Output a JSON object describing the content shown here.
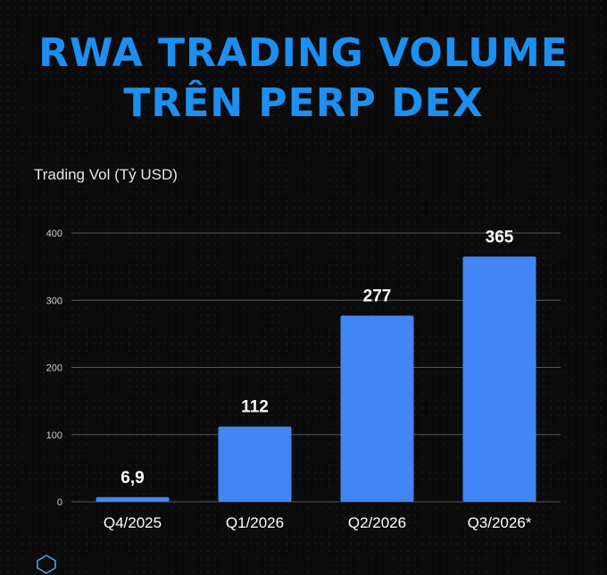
{
  "title_lines": [
    "RWA TRADING VOLUME",
    "TRÊN PERP DEX"
  ],
  "colors": {
    "title": "#1e8ff2",
    "bar": "#4285f4",
    "background": "#0b0b0b",
    "grid": "#5a5a5a",
    "text": "#ffffff"
  },
  "chart_data": {
    "type": "bar",
    "title": "RWA TRADING VOLUME TRÊN PERP DEX",
    "ylabel": "Trading Vol (Tỷ USD)",
    "xlabel": "",
    "categories": [
      "Q4/2025",
      "Q1/2026",
      "Q2/2026",
      "Q3/2026*"
    ],
    "values": [
      6.9,
      112,
      277,
      365
    ],
    "value_labels": [
      "6,9",
      "112",
      "277",
      "365"
    ],
    "ylim": [
      0,
      400
    ],
    "yticks": [
      0,
      100,
      200,
      300,
      400
    ],
    "grid": true
  }
}
